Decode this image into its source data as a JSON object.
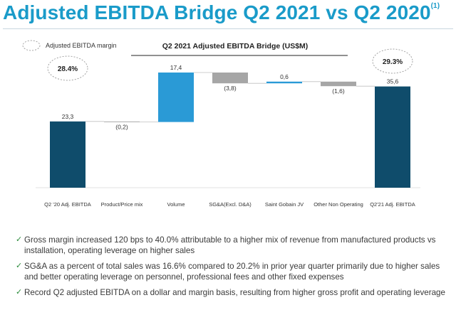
{
  "header": {
    "title": "Adjusted EBITDA Bridge Q2 2021 vs Q2 2020",
    "footnote_marker": "(1)"
  },
  "chart_data": {
    "type": "waterfall",
    "title": "Q2 2021 Adjusted EBITDA Bridge (US$M)",
    "legend_label": "Adjusted EBITDA margin",
    "categories": [
      "Q2 '20 Adj. EBITDA",
      "Product/Price mix",
      "Volume",
      "SG&A(Excl. D&A)",
      "Saint Gobain JV",
      "Other Non Operating",
      "Q2'21 Adj. EBITDA"
    ],
    "values": [
      23.3,
      -0.2,
      17.4,
      -3.8,
      0.6,
      -1.6,
      35.6
    ],
    "value_labels": [
      "23,3",
      "(0,2)",
      "17,4",
      "(3,8)",
      "0,6",
      "(1,6)",
      "35,6"
    ],
    "kinds": [
      "total",
      "delta",
      "delta",
      "delta",
      "delta",
      "delta",
      "total"
    ],
    "margins": [
      {
        "label": "28.4%",
        "category": "Q2 '20 Adj. EBITDA"
      },
      {
        "label": "29.3%",
        "category": "Q2'21 Adj. EBITDA"
      }
    ],
    "ylim": [
      0,
      40
    ],
    "colors": {
      "total": "#0f4c6b",
      "increase": "#2a9ad6",
      "decrease": "#a6a6a6",
      "connector": "#bfbfbf"
    }
  },
  "bullets": [
    "Gross margin increased 120 bps to 40.0% attributable to a higher mix of revenue from manufactured products vs installation, operating leverage on higher sales",
    "SG&A as a percent of total sales was 16.6% compared to 20.2% in prior year quarter primarily due to higher sales and better operating leverage on personnel, professional fees and other fixed expenses",
    "Record Q2 adjusted EBITDA on a dollar and margin basis, resulting from higher gross profit and operating leverage"
  ],
  "bullet_icon": "check-icon"
}
